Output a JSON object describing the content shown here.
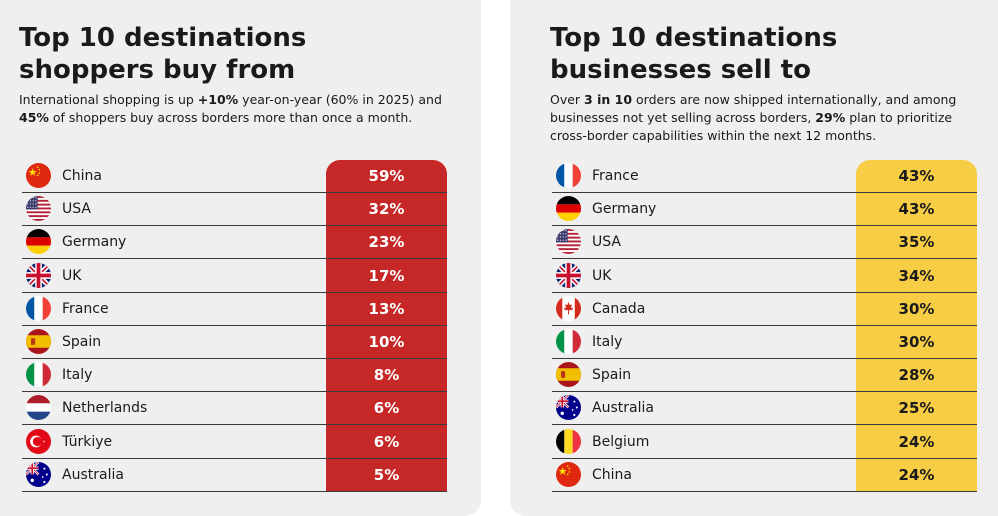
{
  "left": {
    "title_line1": "Top 10 destinations",
    "title_line2": "shoppers buy from",
    "subtitle": [
      [
        {
          "t": "International shopping is up ",
          "b": false
        },
        {
          "t": "+10%",
          "b": true
        },
        {
          "t": " year-on-year (60% in 2025) and",
          "b": false
        }
      ],
      [
        {
          "t": "45%",
          "b": true
        },
        {
          "t": " of shoppers buy across borders more than once a month.",
          "b": false
        }
      ]
    ],
    "accent_color": "#c62828"
  },
  "right": {
    "title_line1": "Top 10 destinations",
    "title_line2": "businesses sell to",
    "subtitle": [
      [
        {
          "t": "Over ",
          "b": false
        },
        {
          "t": "3 in 10",
          "b": true
        },
        {
          "t": " orders are now shipped internationally, and among",
          "b": false
        }
      ],
      [
        {
          "t": "businesses not yet selling across borders, ",
          "b": false
        },
        {
          "t": "29%",
          "b": true
        },
        {
          "t": " plan to prioritize",
          "b": false
        }
      ],
      [
        {
          "t": "cross-border capabilities within the next 12 months.",
          "b": false
        }
      ]
    ],
    "accent_color": "#f7cd46"
  },
  "chart_data": [
    {
      "type": "table",
      "title": "Top 10 destinations shoppers buy from",
      "rows": [
        {
          "country": "China",
          "flag": "china-flag-icon",
          "value": "59%"
        },
        {
          "country": "USA",
          "flag": "usa-flag-icon",
          "value": "32%"
        },
        {
          "country": "Germany",
          "flag": "germany-flag-icon",
          "value": "23%"
        },
        {
          "country": "UK",
          "flag": "uk-flag-icon",
          "value": "17%"
        },
        {
          "country": "France",
          "flag": "france-flag-icon",
          "value": "13%"
        },
        {
          "country": "Spain",
          "flag": "spain-flag-icon",
          "value": "10%"
        },
        {
          "country": "Italy",
          "flag": "italy-flag-icon",
          "value": "8%"
        },
        {
          "country": "Netherlands",
          "flag": "netherlands-flag-icon",
          "value": "6%"
        },
        {
          "country": "Türkiye",
          "flag": "turkiye-flag-icon",
          "value": "6%"
        },
        {
          "country": "Australia",
          "flag": "australia-flag-icon",
          "value": "5%"
        }
      ]
    },
    {
      "type": "table",
      "title": "Top 10 destinations businesses sell to",
      "rows": [
        {
          "country": "France",
          "flag": "france-flag-icon",
          "value": "43%"
        },
        {
          "country": "Germany",
          "flag": "germany-flag-icon",
          "value": "43%"
        },
        {
          "country": "USA",
          "flag": "usa-flag-icon",
          "value": "35%"
        },
        {
          "country": "UK",
          "flag": "uk-flag-icon",
          "value": "34%"
        },
        {
          "country": "Canada",
          "flag": "canada-flag-icon",
          "value": "30%"
        },
        {
          "country": "Italy",
          "flag": "italy-flag-icon",
          "value": "30%"
        },
        {
          "country": "Spain",
          "flag": "spain-flag-icon",
          "value": "28%"
        },
        {
          "country": "Australia",
          "flag": "australia-flag-icon",
          "value": "25%"
        },
        {
          "country": "Belgium",
          "flag": "belgium-flag-icon",
          "value": "24%"
        },
        {
          "country": "China",
          "flag": "china-flag-icon",
          "value": "24%"
        }
      ]
    }
  ]
}
